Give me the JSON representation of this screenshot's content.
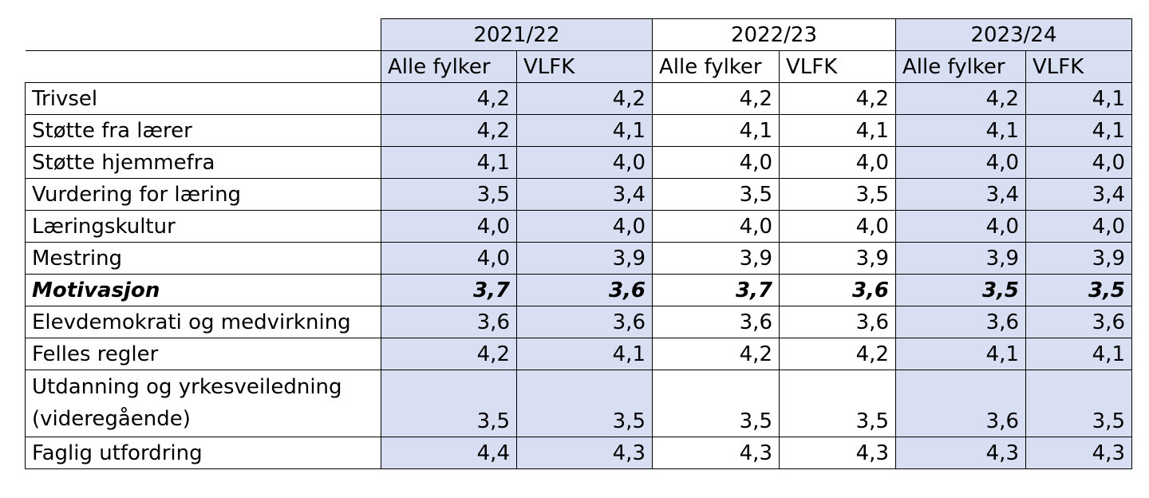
{
  "years": [
    "2021/22",
    "2022/23",
    "2023/24"
  ],
  "subheaders": [
    "Alle fylker",
    "VLFK",
    "Alle fylker",
    "VLFK",
    "Alle fylker",
    "VLFK"
  ],
  "rows": [
    {
      "label": "Trivsel",
      "values": [
        "4,2",
        "4,2",
        "4,2",
        "4,2",
        "4,2",
        "4,1"
      ]
    },
    {
      "label": "Støtte fra lærer",
      "values": [
        "4,2",
        "4,1",
        "4,1",
        "4,1",
        "4,1",
        "4,1"
      ]
    },
    {
      "label": "Støtte hjemmefra",
      "values": [
        "4,1",
        "4,0",
        "4,0",
        "4,0",
        "4,0",
        "4,0"
      ]
    },
    {
      "label": "Vurdering for læring",
      "values": [
        "3,5",
        "3,4",
        "3,5",
        "3,5",
        "3,4",
        "3,4"
      ]
    },
    {
      "label": "Læringskultur",
      "values": [
        "4,0",
        "4,0",
        "4,0",
        "4,0",
        "4,0",
        "4,0"
      ]
    },
    {
      "label": "Mestring",
      "values": [
        "4,0",
        "3,9",
        "3,9",
        "3,9",
        "3,9",
        "3,9"
      ]
    },
    {
      "label": "Motivasjon",
      "values": [
        "3,7",
        "3,6",
        "3,7",
        "3,6",
        "3,5",
        "3,5"
      ]
    },
    {
      "label": "Elevdemokrati og medvirkning",
      "values": [
        "3,6",
        "3,6",
        "3,6",
        "3,6",
        "3,6",
        "3,6"
      ]
    },
    {
      "label": "Felles regler",
      "values": [
        "4,2",
        "4,1",
        "4,2",
        "4,2",
        "4,1",
        "4,1"
      ]
    },
    {
      "label": "Utdanning og yrkesveiledning (videregående)",
      "values": [
        "3,5",
        "3,5",
        "3,5",
        "3,5",
        "3,6",
        "3,5"
      ]
    },
    {
      "label": "Faglig utfordring",
      "values": [
        "4,4",
        "4,3",
        "4,3",
        "4,3",
        "4,3",
        "4,3"
      ]
    }
  ],
  "colors": {
    "shade": "#d9dff2",
    "border": "#000000"
  }
}
